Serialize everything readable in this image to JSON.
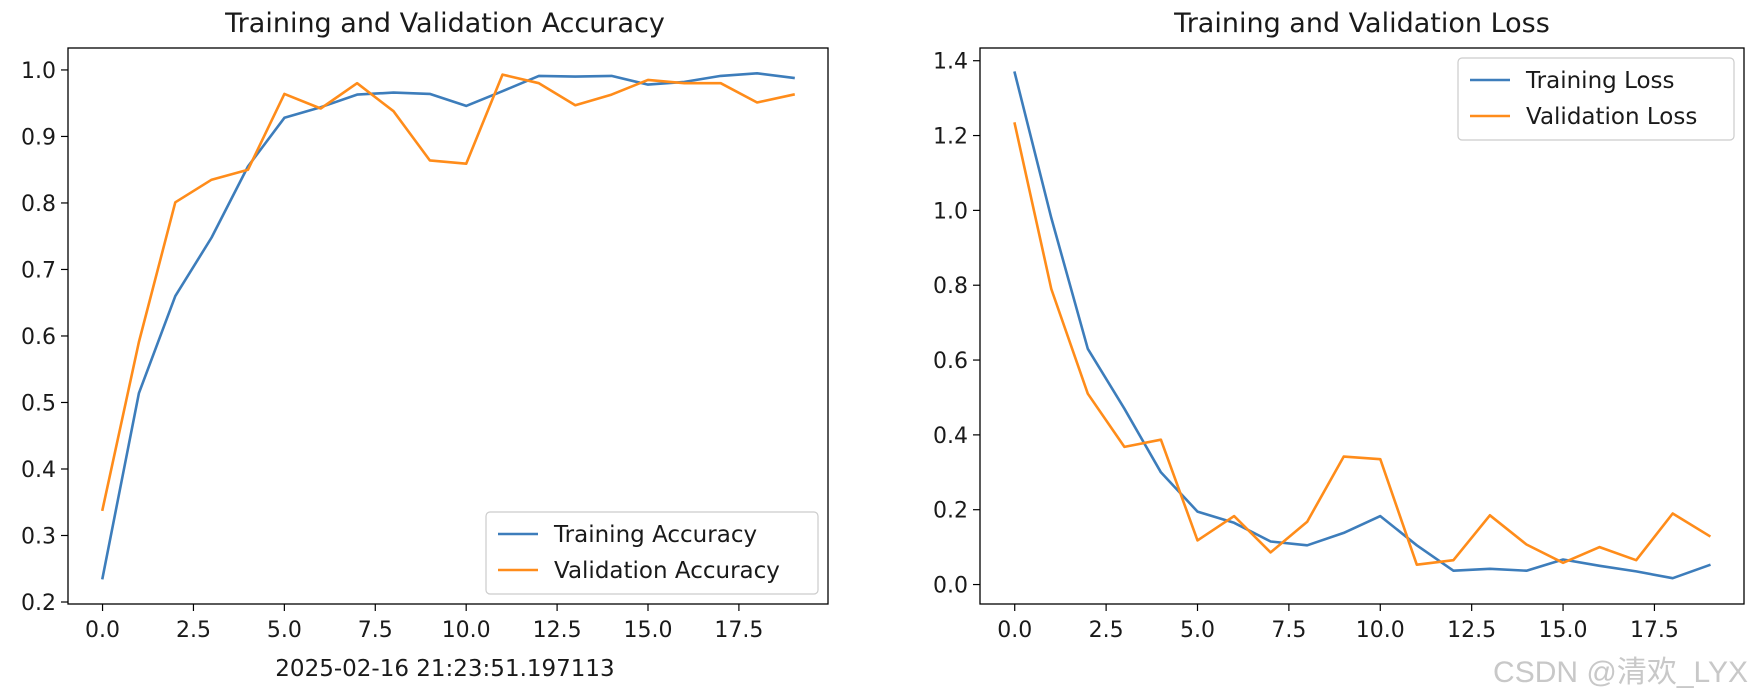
{
  "colors": {
    "training": "#3d7dbb",
    "validation": "#ff8c1a"
  },
  "timestamp": "2025-02-16 21:23:51.197113",
  "watermark": "CSDN @清欢_LYX",
  "chart_data": [
    {
      "type": "line",
      "title": "Training and Validation Accuracy",
      "xlabel": "",
      "ylabel": "",
      "xlim": [
        -0.95,
        19.95
      ],
      "ylim": [
        0.197,
        1.033
      ],
      "xticks": [
        0,
        2.5,
        5,
        7.5,
        10,
        12.5,
        15,
        17.5
      ],
      "xtick_labels": [
        "0.0",
        "2.5",
        "5.0",
        "7.5",
        "10.0",
        "12.5",
        "15.0",
        "17.5"
      ],
      "yticks": [
        0.2,
        0.3,
        0.4,
        0.5,
        0.6,
        0.7,
        0.8,
        0.9,
        1.0
      ],
      "ytick_labels": [
        "0.2",
        "0.3",
        "0.4",
        "0.5",
        "0.6",
        "0.7",
        "0.8",
        "0.9",
        "1.0"
      ],
      "legend_position": "lower-right",
      "grid": false,
      "x": [
        0,
        1,
        2,
        3,
        4,
        5,
        6,
        7,
        8,
        9,
        10,
        11,
        12,
        13,
        14,
        15,
        16,
        17,
        18,
        19
      ],
      "series": [
        {
          "name": "Training Accuracy",
          "color_key": "training",
          "values": [
            0.236,
            0.514,
            0.66,
            0.748,
            0.855,
            0.928,
            0.944,
            0.963,
            0.966,
            0.964,
            0.946,
            0.968,
            0.991,
            0.99,
            0.991,
            0.978,
            0.982,
            0.991,
            0.995,
            0.988
          ]
        },
        {
          "name": "Validation Accuracy",
          "color_key": "validation",
          "values": [
            0.339,
            0.591,
            0.801,
            0.835,
            0.85,
            0.964,
            0.942,
            0.98,
            0.938,
            0.864,
            0.859,
            0.993,
            0.98,
            0.947,
            0.963,
            0.985,
            0.98,
            0.98,
            0.951,
            0.963
          ]
        }
      ]
    },
    {
      "type": "line",
      "title": "Training and Validation Loss",
      "xlabel": "",
      "ylabel": "",
      "xlim": [
        -0.95,
        19.95
      ],
      "ylim": [
        -0.052,
        1.434
      ],
      "xticks": [
        0,
        2.5,
        5,
        7.5,
        10,
        12.5,
        15,
        17.5
      ],
      "xtick_labels": [
        "0.0",
        "2.5",
        "5.0",
        "7.5",
        "10.0",
        "12.5",
        "15.0",
        "17.5"
      ],
      "yticks": [
        0,
        0.2,
        0.4,
        0.6,
        0.8,
        1.0,
        1.2,
        1.4
      ],
      "ytick_labels": [
        "0.0",
        "0.2",
        "0.4",
        "0.6",
        "0.8",
        "1.0",
        "1.2",
        "1.4"
      ],
      "legend_position": "upper-right",
      "grid": false,
      "x": [
        0,
        1,
        2,
        3,
        4,
        5,
        6,
        7,
        8,
        9,
        10,
        11,
        12,
        13,
        14,
        15,
        16,
        17,
        18,
        19
      ],
      "series": [
        {
          "name": "Training Loss",
          "color_key": "training",
          "values": [
            1.368,
            0.98,
            0.63,
            0.47,
            0.3,
            0.195,
            0.165,
            0.115,
            0.105,
            0.138,
            0.183,
            0.105,
            0.037,
            0.042,
            0.037,
            0.067,
            0.05,
            0.035,
            0.017,
            0.052
          ]
        },
        {
          "name": "Validation Loss",
          "color_key": "validation",
          "values": [
            1.232,
            0.79,
            0.51,
            0.368,
            0.387,
            0.118,
            0.183,
            0.086,
            0.168,
            0.342,
            0.335,
            0.053,
            0.065,
            0.185,
            0.107,
            0.058,
            0.1,
            0.065,
            0.19,
            0.13
          ]
        }
      ]
    }
  ]
}
